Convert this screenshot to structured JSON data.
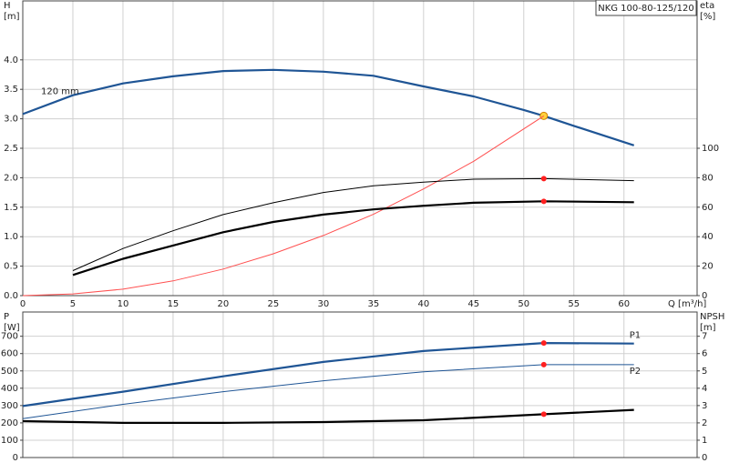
{
  "chart_data": [
    {
      "type": "line",
      "title": "NKG 100-80-125/120",
      "xlabel": "Q [m³/h]",
      "ylabel": [
        "H",
        "[m]"
      ],
      "y2label": [
        "eta",
        "[%]"
      ],
      "xlim": [
        0,
        67.3
      ],
      "xticks": [
        0,
        5,
        10,
        15,
        20,
        25,
        30,
        35,
        40,
        45,
        50,
        55,
        60
      ],
      "ylim": [
        0,
        5
      ],
      "yticks": [
        {
          "value": 0,
          "label": "0.0"
        },
        0.5,
        {
          "value": 1,
          "label": "1.0"
        },
        1.5,
        {
          "value": 2,
          "label": "2.0"
        },
        2.5,
        {
          "value": 3,
          "label": "3.0"
        },
        3.5,
        {
          "value": 4,
          "label": "4.0"
        }
      ],
      "y2lim": [
        0,
        200
      ],
      "y2ticks": [
        0,
        20,
        40,
        60,
        80,
        100
      ],
      "grid": true,
      "show_xtick_labels": true,
      "highlight_x": 52,
      "series": [
        {
          "name": "120 mm",
          "color": "#1f5595",
          "style": "bold",
          "highlight_color": "#ffd23c",
          "x": [
            0,
            5,
            10,
            15,
            20,
            25,
            30,
            35,
            40,
            45,
            50,
            52,
            55,
            61
          ],
          "values": [
            3.08,
            3.4,
            3.6,
            3.72,
            3.81,
            3.83,
            3.8,
            3.73,
            3.55,
            3.38,
            3.15,
            3.05,
            2.88,
            2.55
          ]
        },
        {
          "color": "#ff5050",
          "style": "thin",
          "x": [
            0,
            5,
            10,
            15,
            20,
            25,
            30,
            35,
            40,
            45,
            52
          ],
          "values": [
            0,
            0.03,
            0.11,
            0.25,
            0.45,
            0.71,
            1.02,
            1.38,
            1.81,
            2.28,
            3.05
          ]
        },
        {
          "color": "#000000",
          "style": "thin",
          "axis": "y2",
          "highlight_color": "#ff2020",
          "x": [
            5,
            10,
            15,
            20,
            25,
            30,
            35,
            40,
            45,
            52,
            61
          ],
          "values": [
            17,
            32,
            44,
            55,
            63,
            70,
            74.5,
            77,
            79,
            79.4,
            78
          ]
        },
        {
          "color": "#000000",
          "style": "bold",
          "axis": "y2",
          "highlight_color": "#ff2020",
          "x": [
            5,
            10,
            15,
            20,
            25,
            30,
            35,
            40,
            45,
            52,
            61
          ],
          "values": [
            14,
            25,
            34,
            43,
            50,
            55,
            58.5,
            61,
            63,
            64,
            63.4
          ]
        }
      ]
    },
    {
      "type": "line",
      "ylabel": [
        "P",
        "[W]"
      ],
      "y2label": [
        "NPSH",
        "[m]"
      ],
      "xlim": [
        0,
        67.3
      ],
      "xticks": [
        0,
        5,
        10,
        15,
        20,
        25,
        30,
        35,
        40,
        45,
        50,
        55,
        60
      ],
      "ylim": [
        0,
        840
      ],
      "yticks": [
        0,
        100,
        200,
        300,
        400,
        500,
        600,
        700
      ],
      "y2lim": [
        0,
        8.4
      ],
      "y2ticks": [
        0,
        1,
        2,
        3,
        4,
        5,
        6,
        7
      ],
      "grid": true,
      "show_xtick_labels": false,
      "highlight_x": 52,
      "series": [
        {
          "name": "P1",
          "color": "#1f5595",
          "style": "bold",
          "highlight_color": "#ff2020",
          "x": [
            0,
            5,
            10,
            20,
            30,
            40,
            52,
            61
          ],
          "values": [
            297,
            339,
            380,
            469,
            552,
            615,
            661,
            658
          ]
        },
        {
          "name": "P2",
          "color": "#1f5595",
          "style": "thin",
          "highlight_color": "#ff2020",
          "x": [
            0,
            10,
            20,
            30,
            40,
            52,
            61
          ],
          "values": [
            224,
            307,
            380,
            443,
            495,
            536,
            536
          ]
        },
        {
          "color": "#000000",
          "style": "bold",
          "axis": "y2",
          "highlight_color": "#ff2020",
          "x": [
            0,
            10,
            20,
            30,
            40,
            52,
            61
          ],
          "values": [
            2.1,
            2.0,
            2.0,
            2.05,
            2.15,
            2.5,
            2.75
          ]
        }
      ]
    }
  ]
}
